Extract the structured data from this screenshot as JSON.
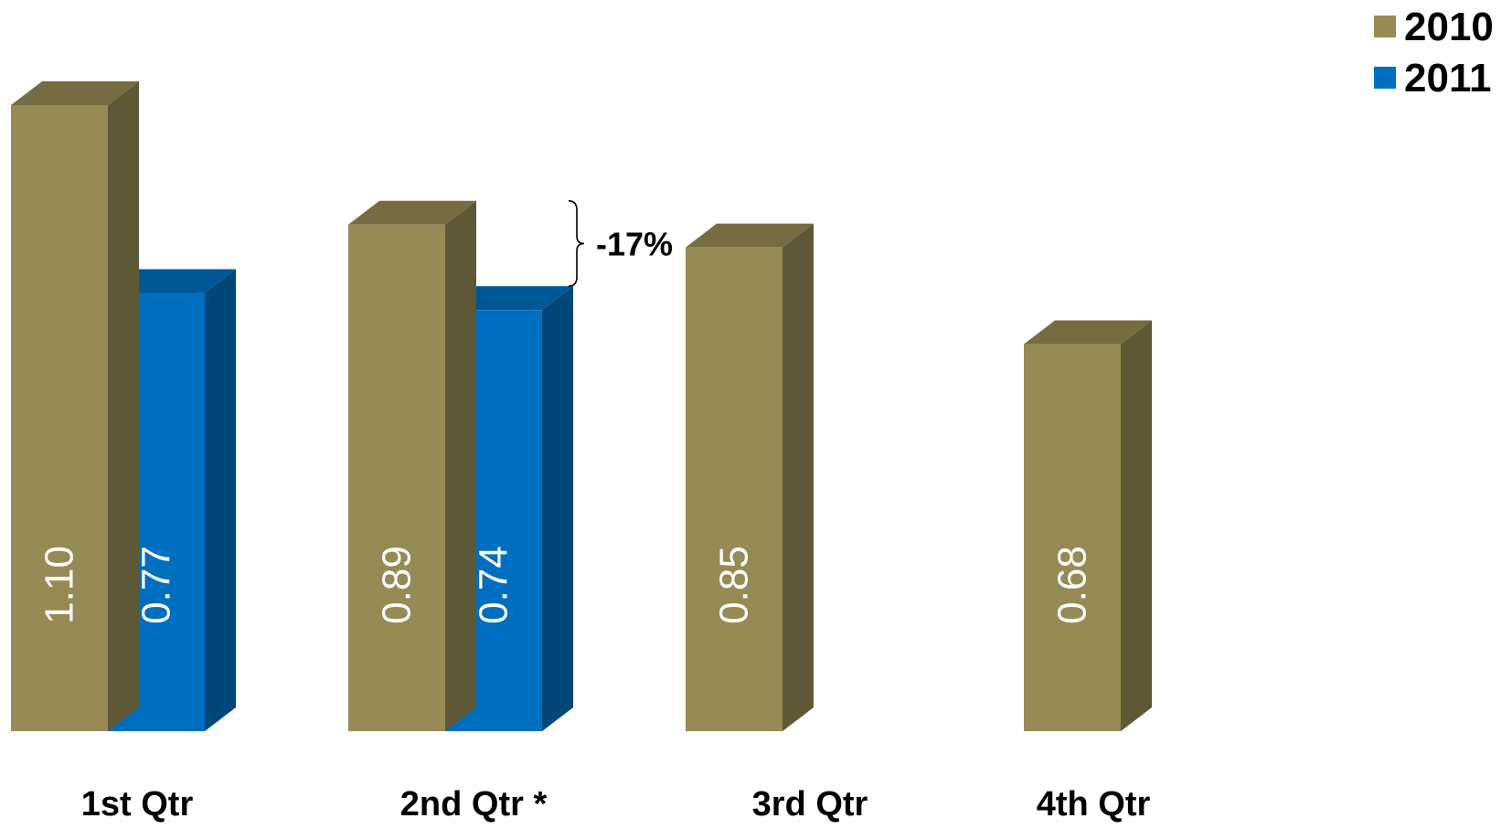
{
  "chart_data": {
    "type": "bar",
    "categories": [
      "1st Qtr",
      "2nd Qtr *",
      "3rd Qtr",
      "4th Qtr"
    ],
    "series": [
      {
        "name": "2010",
        "values": [
          1.1,
          0.89,
          0.85,
          0.68
        ],
        "value_labels": [
          "1.10",
          "0.89",
          "0.85",
          "0.68"
        ],
        "color": "#968B55"
      },
      {
        "name": "2011",
        "values": [
          0.77,
          0.74,
          null,
          null
        ],
        "value_labels": [
          "0.77",
          "0.74",
          "",
          ""
        ],
        "color": "#006FC0"
      }
    ],
    "title": "",
    "xlabel": "",
    "ylabel": "",
    "ylim": [
      0,
      1.1
    ],
    "grid": false,
    "legend": "top-right",
    "three_d": true,
    "annotations": [
      {
        "text": "-17%",
        "category": "2nd Qtr *",
        "between_series": [
          "2010",
          "2011"
        ]
      }
    ]
  }
}
